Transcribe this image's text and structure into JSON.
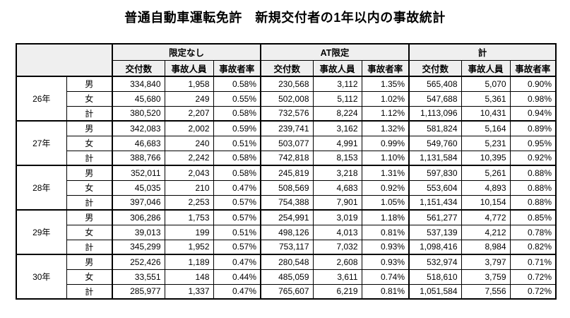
{
  "title": "普通自動車運転免許　新規交付者の1年以内の事故統計",
  "table": {
    "column_groups": [
      "限定なし",
      "AT限定",
      "計"
    ],
    "sub_headers": [
      "交付数",
      "事故人員",
      "事故者率"
    ],
    "colors": {
      "header_bg": "#efefef",
      "border": "#000000",
      "text": "#000000",
      "page_bg": "#ffffff"
    },
    "year_groups": [
      {
        "year": "26年",
        "rows": [
          {
            "gender": "男",
            "cells": [
              "334,840",
              "1,958",
              "0.58%",
              "230,568",
              "3,112",
              "1.35%",
              "565,408",
              "5,070",
              "0.90%"
            ]
          },
          {
            "gender": "女",
            "cells": [
              "45,680",
              "249",
              "0.55%",
              "502,008",
              "5,112",
              "1.02%",
              "547,688",
              "5,361",
              "0.98%"
            ]
          },
          {
            "gender": "計",
            "cells": [
              "380,520",
              "2,207",
              "0.58%",
              "732,576",
              "8,224",
              "1.12%",
              "1,113,096",
              "10,431",
              "0.94%"
            ]
          }
        ]
      },
      {
        "year": "27年",
        "rows": [
          {
            "gender": "男",
            "cells": [
              "342,083",
              "2,002",
              "0.59%",
              "239,741",
              "3,162",
              "1.32%",
              "581,824",
              "5,164",
              "0.89%"
            ]
          },
          {
            "gender": "女",
            "cells": [
              "46,683",
              "240",
              "0.51%",
              "503,077",
              "4,991",
              "0.99%",
              "549,760",
              "5,231",
              "0.95%"
            ]
          },
          {
            "gender": "計",
            "cells": [
              "388,766",
              "2,242",
              "0.58%",
              "742,818",
              "8,153",
              "1.10%",
              "1,131,584",
              "10,395",
              "0.92%"
            ]
          }
        ]
      },
      {
        "year": "28年",
        "rows": [
          {
            "gender": "男",
            "cells": [
              "352,011",
              "2,043",
              "0.58%",
              "245,819",
              "3,218",
              "1.31%",
              "597,830",
              "5,261",
              "0.88%"
            ]
          },
          {
            "gender": "女",
            "cells": [
              "45,035",
              "210",
              "0.47%",
              "508,569",
              "4,683",
              "0.92%",
              "553,604",
              "4,893",
              "0.88%"
            ]
          },
          {
            "gender": "計",
            "cells": [
              "397,046",
              "2,253",
              "0.57%",
              "754,388",
              "7,901",
              "1.05%",
              "1,151,434",
              "10,154",
              "0.88%"
            ]
          }
        ]
      },
      {
        "year": "29年",
        "rows": [
          {
            "gender": "男",
            "cells": [
              "306,286",
              "1,753",
              "0.57%",
              "254,991",
              "3,019",
              "1.18%",
              "561,277",
              "4,772",
              "0.85%"
            ]
          },
          {
            "gender": "女",
            "cells": [
              "39,013",
              "199",
              "0.51%",
              "498,126",
              "4,013",
              "0.81%",
              "537,139",
              "4,212",
              "0.78%"
            ]
          },
          {
            "gender": "計",
            "cells": [
              "345,299",
              "1,952",
              "0.57%",
              "753,117",
              "7,032",
              "0.93%",
              "1,098,416",
              "8,984",
              "0.82%"
            ]
          }
        ]
      },
      {
        "year": "30年",
        "rows": [
          {
            "gender": "男",
            "cells": [
              "252,426",
              "1,189",
              "0.47%",
              "280,548",
              "2,608",
              "0.93%",
              "532,974",
              "3,797",
              "0.71%"
            ]
          },
          {
            "gender": "女",
            "cells": [
              "33,551",
              "148",
              "0.44%",
              "485,059",
              "3,611",
              "0.74%",
              "518,610",
              "3,759",
              "0.72%"
            ]
          },
          {
            "gender": "計",
            "cells": [
              "285,977",
              "1,337",
              "0.47%",
              "765,607",
              "6,219",
              "0.81%",
              "1,051,584",
              "7,556",
              "0.72%"
            ]
          }
        ]
      }
    ]
  }
}
